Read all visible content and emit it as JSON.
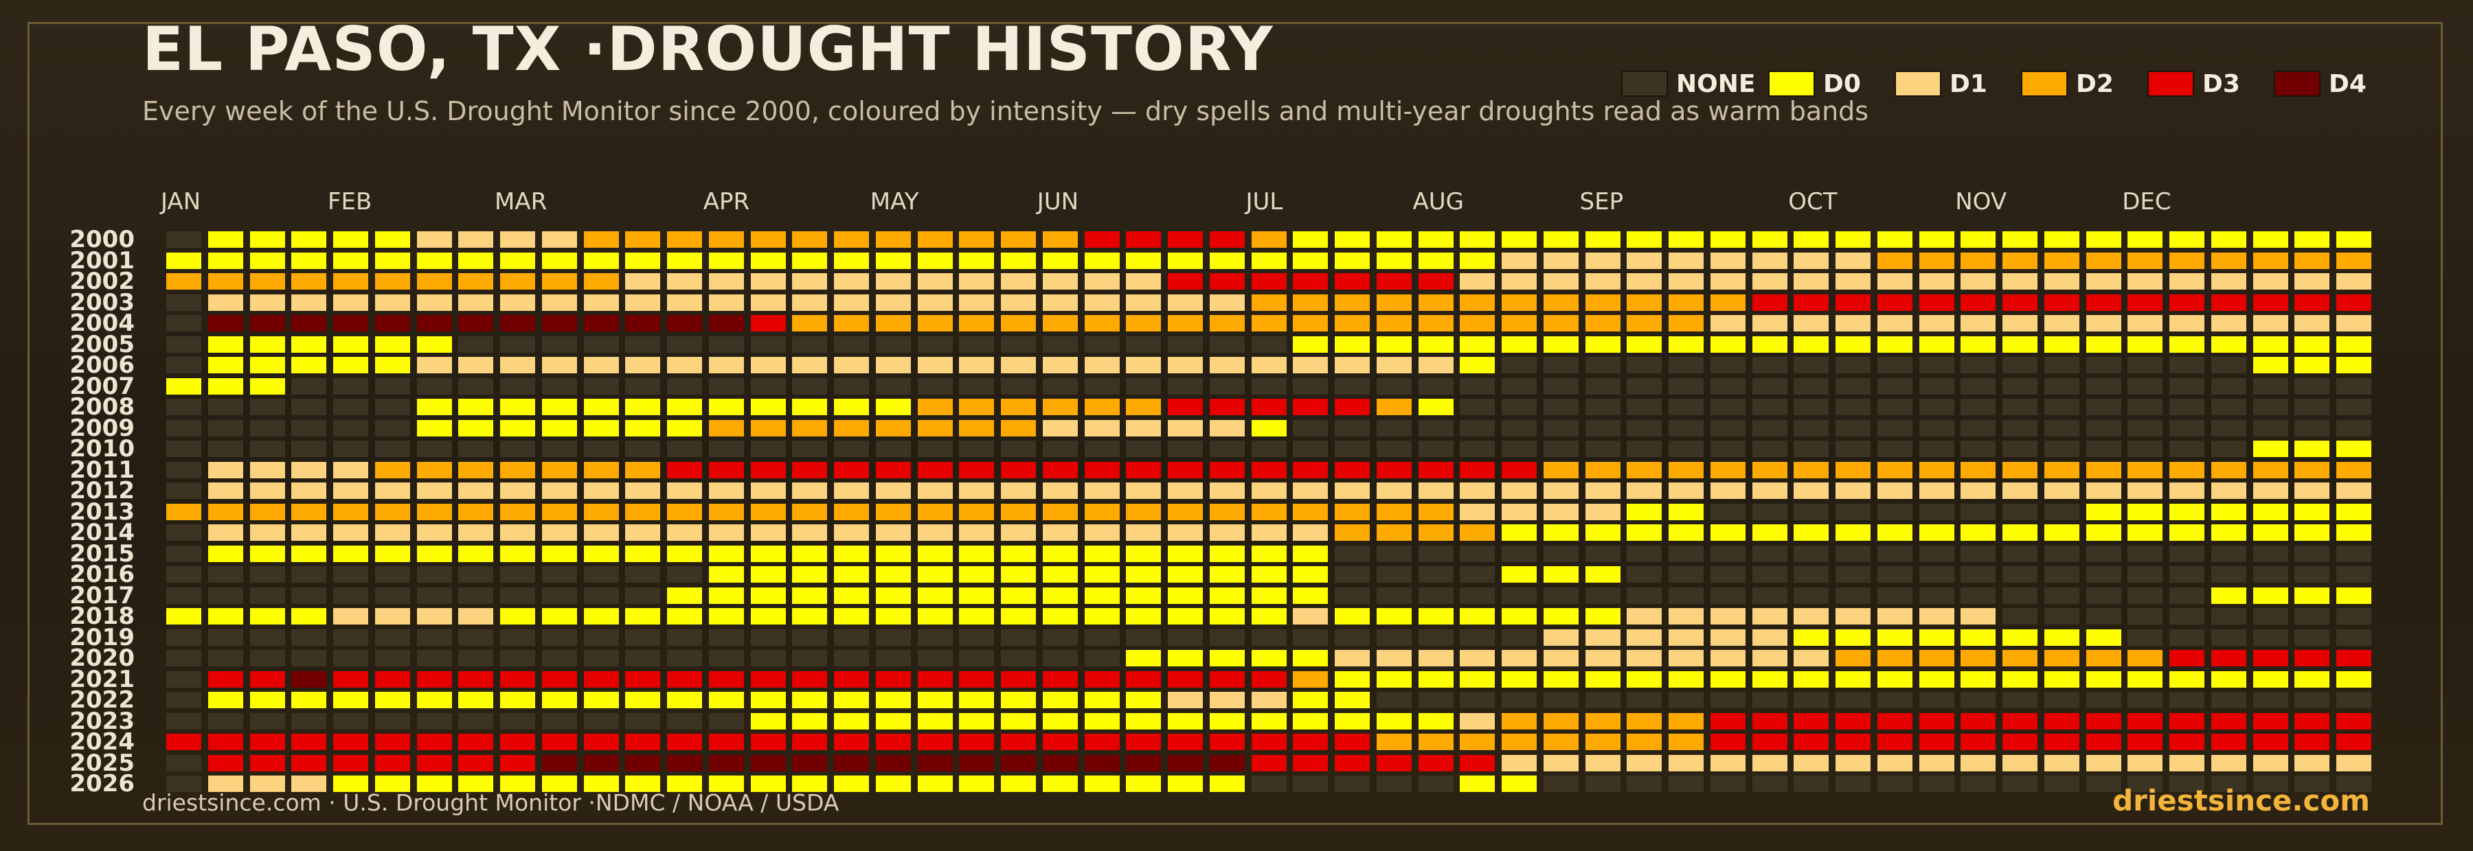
{
  "header": {
    "title": "EL PASO, TX ·DROUGHT HISTORY",
    "subtitle": "Every week of the U.S. Drought Monitor since 2000, coloured by intensity — dry spells and multi-year droughts read as warm bands"
  },
  "footer": {
    "source": "driestsince.com  · U.S. Drought Monitor ·NDMC / NOAA / USDA",
    "brand": "driestsince.com"
  },
  "colors": {
    "background": "#2a2215",
    "frame": "#6e5c36",
    "brand": "#f2b43a"
  },
  "chart_data": {
    "type": "heatmap",
    "title": "EL PASO, TX ·DROUGHT HISTORY",
    "x_ticks": [
      "JAN",
      "FEB",
      "MAR",
      "APR",
      "MAY",
      "JUN",
      "JUL",
      "AUG",
      "SEP",
      "OCT",
      "NOV",
      "DEC"
    ],
    "x_tick_weeks": [
      0,
      4,
      8,
      13,
      17,
      21,
      26,
      30,
      34,
      39,
      43,
      47
    ],
    "weeks_per_year": 53,
    "years": [
      "2000",
      "2001",
      "2002",
      "2003",
      "2004",
      "2005",
      "2006",
      "2007",
      "2008",
      "2009",
      "2010",
      "2011",
      "2012",
      "2013",
      "2014",
      "2015",
      "2016",
      "2017",
      "2018",
      "2019",
      "2020",
      "2021",
      "2022",
      "2023",
      "2024",
      "2025",
      "2026"
    ],
    "categories": [
      "NONE",
      "D0",
      "D1",
      "D2",
      "D3",
      "D4"
    ],
    "category_colors": [
      "#3d3322",
      "#ffff00",
      "#fcd37f",
      "#ffaa00",
      "#e60000",
      "#730000"
    ],
    "legend": [
      {
        "label": "NONE",
        "color": "#3d3322"
      },
      {
        "label": "D0",
        "color": "#ffff00"
      },
      {
        "label": "D1",
        "color": "#fcd37f"
      },
      {
        "label": "D2",
        "color": "#ffaa00"
      },
      {
        "label": "D3",
        "color": "#e60000"
      },
      {
        "label": "D4",
        "color": "#730000"
      }
    ],
    "legend_position": "top-right",
    "rows": [
      [
        [
          0,
          1,
          0
        ],
        [
          1,
          5,
          1
        ],
        [
          6,
          9,
          2
        ],
        [
          10,
          21,
          3
        ],
        [
          22,
          25,
          4
        ],
        [
          26,
          26,
          3
        ],
        [
          27,
          52,
          1
        ]
      ],
      [
        [
          0,
          6,
          1
        ],
        [
          7,
          12,
          1
        ],
        [
          13,
          31,
          1
        ],
        [
          32,
          40,
          2
        ],
        [
          41,
          52,
          3
        ]
      ],
      [
        [
          0,
          10,
          3
        ],
        [
          11,
          19,
          2
        ],
        [
          20,
          23,
          2
        ],
        [
          24,
          30,
          4
        ],
        [
          31,
          39,
          2
        ],
        [
          40,
          52,
          2
        ]
      ],
      [
        [
          0,
          0,
          0
        ],
        [
          1,
          16,
          2
        ],
        [
          17,
          25,
          2
        ],
        [
          26,
          33,
          3
        ],
        [
          34,
          37,
          3
        ],
        [
          38,
          51,
          4
        ],
        [
          52,
          52,
          4
        ]
      ],
      [
        [
          0,
          0,
          0
        ],
        [
          1,
          13,
          5
        ],
        [
          14,
          14,
          4
        ],
        [
          15,
          33,
          3
        ],
        [
          34,
          36,
          3
        ],
        [
          37,
          52,
          2
        ]
      ],
      [
        [
          0,
          0,
          0
        ],
        [
          1,
          6,
          1
        ],
        [
          7,
          26,
          0
        ],
        [
          27,
          33,
          1
        ],
        [
          34,
          52,
          1
        ]
      ],
      [
        [
          0,
          0,
          0
        ],
        [
          1,
          5,
          1
        ],
        [
          6,
          30,
          2
        ],
        [
          31,
          31,
          1
        ],
        [
          32,
          49,
          0
        ],
        [
          50,
          52,
          1
        ]
      ],
      [
        [
          0,
          2,
          1
        ],
        [
          3,
          52,
          0
        ]
      ],
      [
        [
          0,
          5,
          0
        ],
        [
          6,
          17,
          1
        ],
        [
          18,
          23,
          3
        ],
        [
          24,
          28,
          4
        ],
        [
          29,
          29,
          3
        ],
        [
          30,
          30,
          1
        ],
        [
          31,
          52,
          0
        ]
      ],
      [
        [
          0,
          5,
          0
        ],
        [
          6,
          12,
          1
        ],
        [
          13,
          20,
          3
        ],
        [
          21,
          25,
          2
        ],
        [
          26,
          26,
          1
        ],
        [
          27,
          52,
          0
        ]
      ],
      [
        [
          0,
          49,
          0
        ],
        [
          50,
          52,
          1
        ]
      ],
      [
        [
          0,
          0,
          0
        ],
        [
          1,
          4,
          2
        ],
        [
          5,
          11,
          3
        ],
        [
          12,
          32,
          4
        ],
        [
          33,
          52,
          3
        ]
      ],
      [
        [
          0,
          0,
          0
        ],
        [
          1,
          20,
          2
        ],
        [
          21,
          32,
          2
        ],
        [
          33,
          52,
          2
        ]
      ],
      [
        [
          0,
          0,
          3
        ],
        [
          1,
          16,
          3
        ],
        [
          17,
          30,
          3
        ],
        [
          31,
          34,
          2
        ],
        [
          35,
          36,
          1
        ],
        [
          37,
          45,
          0
        ],
        [
          46,
          52,
          1
        ]
      ],
      [
        [
          0,
          0,
          0
        ],
        [
          1,
          16,
          2
        ],
        [
          17,
          27,
          2
        ],
        [
          28,
          31,
          3
        ],
        [
          32,
          52,
          1
        ]
      ],
      [
        [
          0,
          0,
          0
        ],
        [
          1,
          27,
          1
        ],
        [
          28,
          52,
          0
        ]
      ],
      [
        [
          0,
          12,
          0
        ],
        [
          13,
          27,
          1
        ],
        [
          28,
          31,
          0
        ],
        [
          32,
          34,
          1
        ],
        [
          35,
          52,
          0
        ]
      ],
      [
        [
          0,
          11,
          0
        ],
        [
          12,
          27,
          1
        ],
        [
          28,
          48,
          0
        ],
        [
          49,
          52,
          1
        ]
      ],
      [
        [
          0,
          3,
          1
        ],
        [
          4,
          7,
          2
        ],
        [
          8,
          26,
          1
        ],
        [
          27,
          27,
          2
        ],
        [
          28,
          34,
          1
        ],
        [
          35,
          43,
          2
        ],
        [
          44,
          52,
          0
        ]
      ],
      [
        [
          0,
          32,
          0
        ],
        [
          33,
          38,
          2
        ],
        [
          39,
          46,
          1
        ],
        [
          47,
          52,
          0
        ]
      ],
      [
        [
          0,
          22,
          0
        ],
        [
          23,
          27,
          1
        ],
        [
          28,
          34,
          2
        ],
        [
          35,
          39,
          2
        ],
        [
          40,
          47,
          3
        ],
        [
          48,
          52,
          4
        ]
      ],
      [
        [
          0,
          0,
          0
        ],
        [
          1,
          2,
          4
        ],
        [
          3,
          3,
          5
        ],
        [
          4,
          26,
          4
        ],
        [
          27,
          27,
          3
        ],
        [
          28,
          52,
          1
        ]
      ],
      [
        [
          0,
          0,
          0
        ],
        [
          1,
          23,
          1
        ],
        [
          24,
          26,
          2
        ],
        [
          27,
          28,
          1
        ],
        [
          29,
          52,
          0
        ]
      ],
      [
        [
          0,
          13,
          0
        ],
        [
          14,
          30,
          1
        ],
        [
          31,
          31,
          2
        ],
        [
          32,
          36,
          3
        ],
        [
          37,
          52,
          4
        ]
      ],
      [
        [
          0,
          0,
          4
        ],
        [
          1,
          28,
          4
        ],
        [
          29,
          29,
          3
        ],
        [
          30,
          36,
          3
        ],
        [
          37,
          52,
          4
        ]
      ],
      [
        [
          0,
          0,
          0
        ],
        [
          1,
          8,
          4
        ],
        [
          9,
          25,
          5
        ],
        [
          26,
          31,
          4
        ],
        [
          32,
          52,
          2
        ]
      ],
      [
        [
          0,
          0,
          0
        ],
        [
          1,
          3,
          2
        ],
        [
          4,
          17,
          1
        ],
        [
          18,
          25,
          1
        ],
        [
          26,
          30,
          0
        ],
        [
          31,
          32,
          1
        ],
        [
          33,
          52,
          0
        ]
      ]
    ]
  }
}
